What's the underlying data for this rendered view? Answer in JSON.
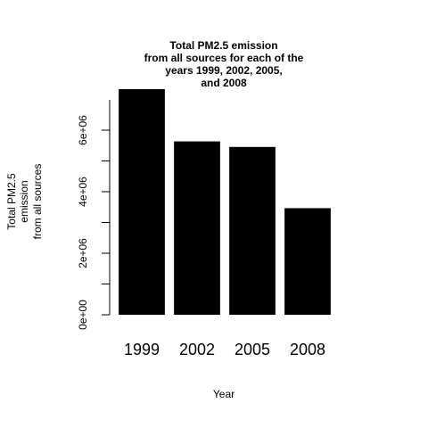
{
  "chart_data": {
    "type": "bar",
    "title": [
      "Total PM2.5 emission",
      "from all sources for each of the",
      "years 1999, 2002, 2005,",
      "and 2008"
    ],
    "ylabel": [
      "Total PM2.5",
      "emission",
      "from all sources"
    ],
    "xlabel": "Year",
    "categories": [
      "1999",
      "2002",
      "2005",
      "2008"
    ],
    "values": [
      7332967,
      5635780,
      5454703,
      3464206
    ],
    "ylim": [
      0,
      7332967
    ],
    "yticks": [
      0,
      2000000,
      4000000,
      6000000
    ],
    "ytick_labels": [
      "0e+00",
      "2e+06",
      "4e+06",
      "6e+06"
    ],
    "bar_color": "#000000",
    "grid": false
  }
}
